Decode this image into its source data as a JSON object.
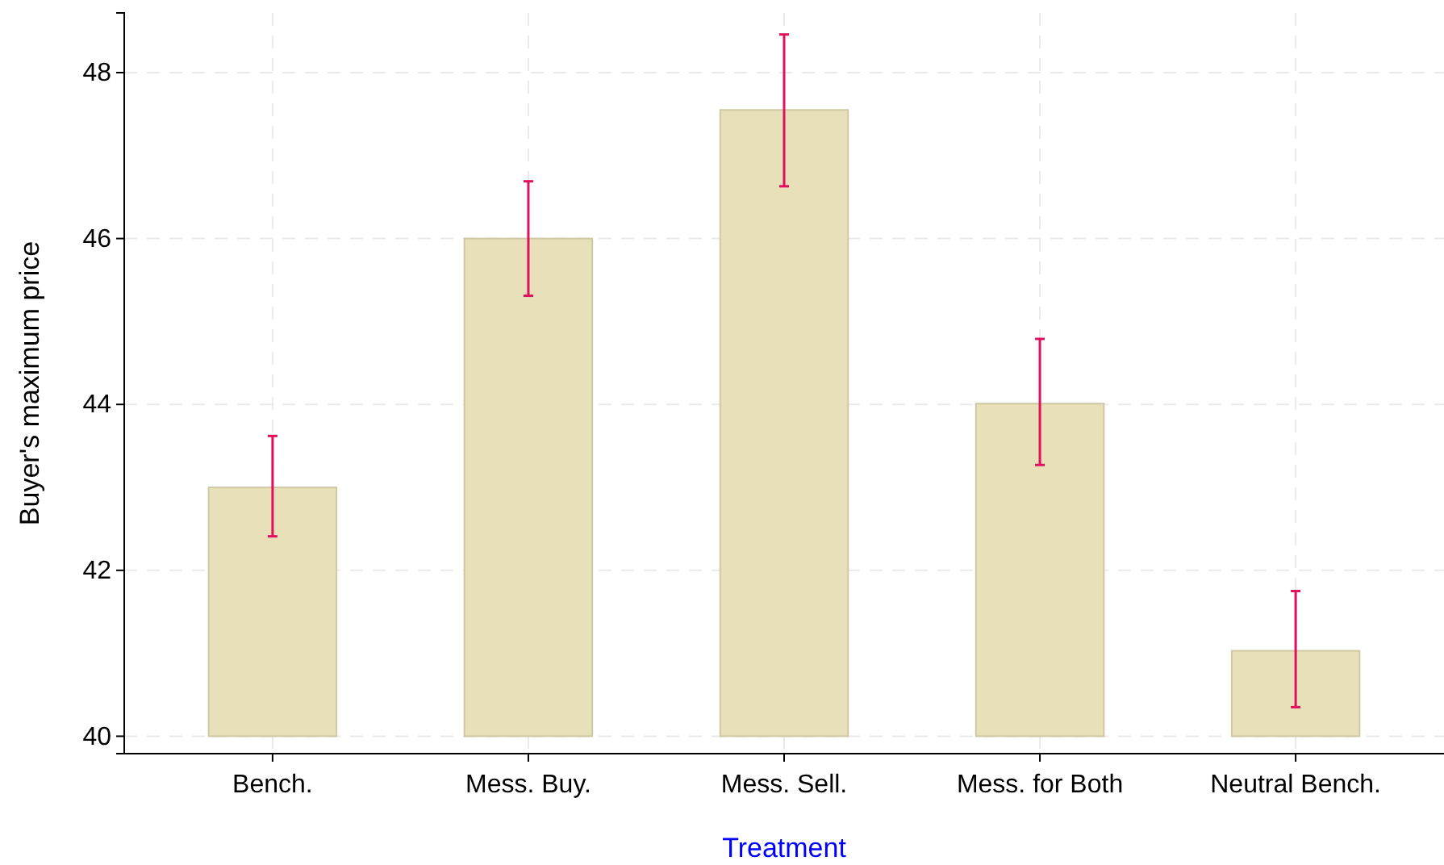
{
  "chart_data": {
    "type": "bar",
    "xlabel": "Treatment",
    "ylabel": "Buyer's maximum price",
    "categories": [
      "Bench.",
      "Mess. Buy.",
      "Mess. Sell.",
      "Mess. for Both",
      "Neutral Bench."
    ],
    "values": [
      3.0,
      6.0,
      7.55,
      4.01,
      1.03
    ],
    "base": [
      40,
      40,
      40,
      40,
      40
    ],
    "errors": [
      [
        42.41,
        43.62
      ],
      [
        45.31,
        46.69
      ],
      [
        46.63,
        48.46
      ],
      [
        43.27,
        44.79
      ],
      [
        40.35,
        41.75
      ]
    ],
    "color": "#e8e0b8",
    "ylim": [
      39.79,
      48.72
    ],
    "yticks": [
      40,
      42,
      44,
      46,
      48
    ],
    "grid": true
  }
}
